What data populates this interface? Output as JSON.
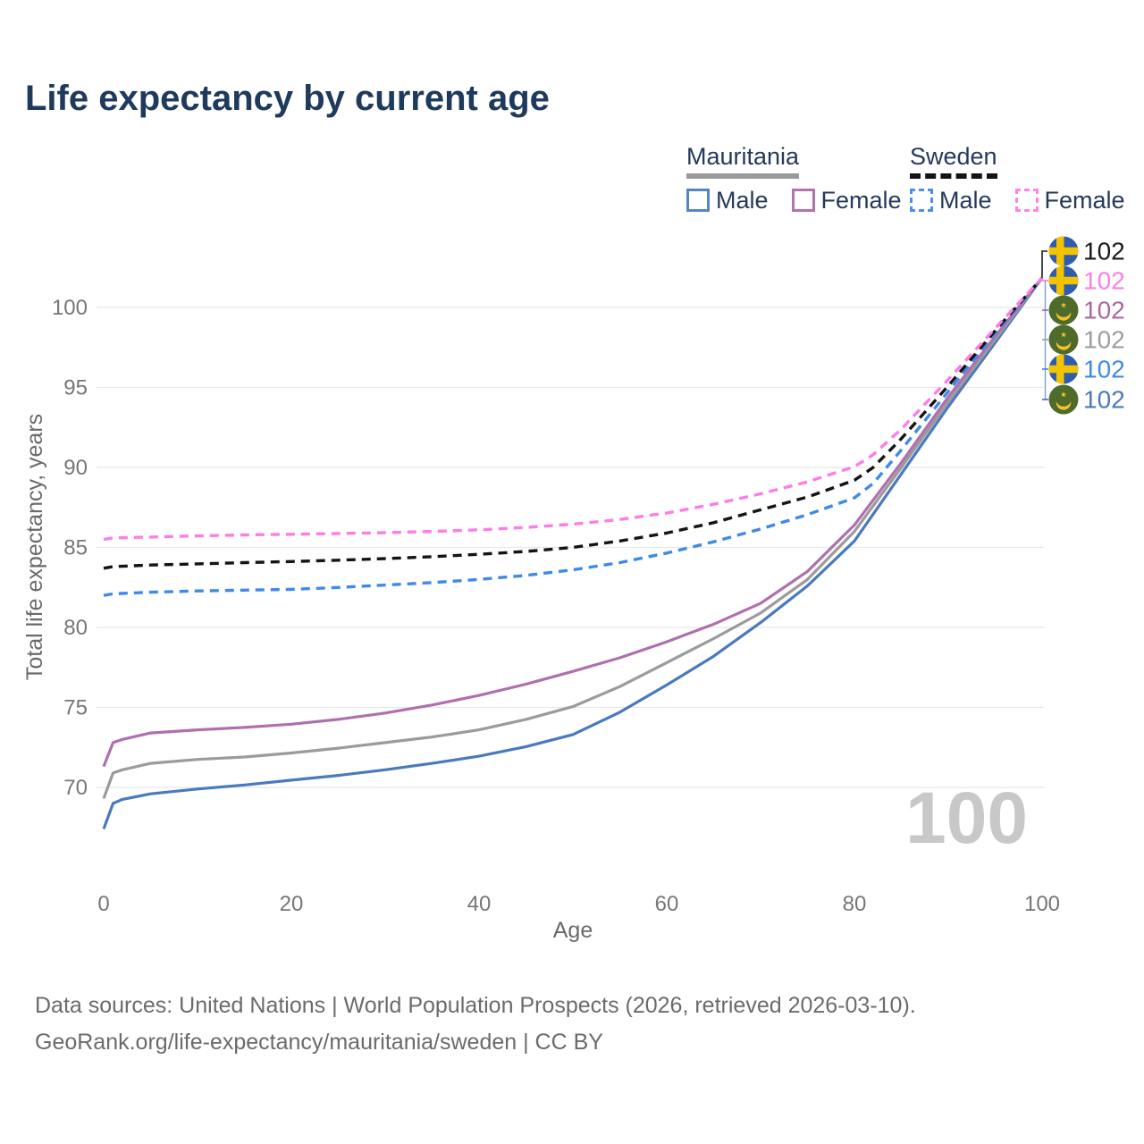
{
  "title": "Life expectancy by current age",
  "legend": {
    "groups": [
      {
        "name": "Mauritania",
        "line_style": "solid",
        "underline_color": "#9a9a9a",
        "items": [
          {
            "label": "Male",
            "color": "#5585c2",
            "dashed": false
          },
          {
            "label": "Female",
            "color": "#b273af",
            "dashed": false
          }
        ]
      },
      {
        "name": "Sweden",
        "line_style": "dashed",
        "underline_color": "#141414",
        "items": [
          {
            "label": "Male",
            "color": "#4a8fe8",
            "dashed": true
          },
          {
            "label": "Female",
            "color": "#ff85e8",
            "dashed": true
          }
        ]
      }
    ]
  },
  "chart_data": {
    "type": "line",
    "title": "Life expectancy by current age",
    "xlabel": "Age",
    "ylabel": "Total life expectancy, years",
    "xlim": [
      0,
      100
    ],
    "ylim": [
      66,
      103
    ],
    "x_ticks": [
      "0",
      "20",
      "40",
      "60",
      "80",
      "100"
    ],
    "x_tick_values": [
      0,
      20,
      40,
      60,
      80,
      100
    ],
    "y_ticks": [
      "70",
      "75",
      "80",
      "85",
      "90",
      "95",
      "100"
    ],
    "y_tick_values": [
      70,
      75,
      80,
      85,
      90,
      95,
      100
    ],
    "grid": "horizontal",
    "legend_position": "top-right",
    "age_counter_watermark": "100",
    "series": [
      {
        "name": "Mauritania Male",
        "country": "mauritania",
        "sex": "male",
        "color": "#4a79bd",
        "dashed": false,
        "points": [
          [
            0,
            67.4
          ],
          [
            1,
            69.0
          ],
          [
            2,
            69.25
          ],
          [
            5,
            69.6
          ],
          [
            10,
            69.9
          ],
          [
            15,
            70.15
          ],
          [
            20,
            70.45
          ],
          [
            25,
            70.75
          ],
          [
            30,
            71.1
          ],
          [
            35,
            71.5
          ],
          [
            40,
            71.95
          ],
          [
            45,
            72.55
          ],
          [
            50,
            73.3
          ],
          [
            55,
            74.7
          ],
          [
            60,
            76.4
          ],
          [
            65,
            78.2
          ],
          [
            70,
            80.3
          ],
          [
            75,
            82.6
          ],
          [
            80,
            85.4
          ],
          [
            85,
            89.6
          ],
          [
            90,
            93.8
          ],
          [
            95,
            97.8
          ],
          [
            100,
            101.85
          ]
        ]
      },
      {
        "name": "Mauritania Total",
        "country": "mauritania",
        "sex": "total",
        "color": "#9b9b9b",
        "dashed": false,
        "points": [
          [
            0,
            69.3
          ],
          [
            1,
            70.9
          ],
          [
            2,
            71.1
          ],
          [
            5,
            71.5
          ],
          [
            10,
            71.75
          ],
          [
            15,
            71.9
          ],
          [
            20,
            72.15
          ],
          [
            25,
            72.45
          ],
          [
            30,
            72.8
          ],
          [
            35,
            73.15
          ],
          [
            40,
            73.6
          ],
          [
            45,
            74.25
          ],
          [
            50,
            75.05
          ],
          [
            55,
            76.3
          ],
          [
            60,
            77.8
          ],
          [
            65,
            79.3
          ],
          [
            70,
            80.9
          ],
          [
            75,
            83.0
          ],
          [
            80,
            86.0
          ],
          [
            85,
            90.0
          ],
          [
            90,
            94.1
          ],
          [
            95,
            98.0
          ],
          [
            100,
            101.85
          ]
        ]
      },
      {
        "name": "Mauritania Female",
        "country": "mauritania",
        "sex": "female",
        "color": "#b06fae",
        "dashed": false,
        "points": [
          [
            0,
            71.3
          ],
          [
            1,
            72.8
          ],
          [
            2,
            73.0
          ],
          [
            5,
            73.4
          ],
          [
            10,
            73.6
          ],
          [
            15,
            73.75
          ],
          [
            20,
            73.95
          ],
          [
            25,
            74.25
          ],
          [
            30,
            74.65
          ],
          [
            35,
            75.15
          ],
          [
            40,
            75.75
          ],
          [
            45,
            76.45
          ],
          [
            50,
            77.25
          ],
          [
            55,
            78.1
          ],
          [
            60,
            79.1
          ],
          [
            65,
            80.2
          ],
          [
            70,
            81.5
          ],
          [
            75,
            83.5
          ],
          [
            80,
            86.4
          ],
          [
            85,
            90.3
          ],
          [
            90,
            94.4
          ],
          [
            95,
            98.2
          ],
          [
            100,
            101.85
          ]
        ]
      },
      {
        "name": "Sweden Male",
        "country": "sweden",
        "sex": "male",
        "color": "#3f89ea",
        "dashed": true,
        "points": [
          [
            0,
            82.0
          ],
          [
            1,
            82.1
          ],
          [
            3,
            82.15
          ],
          [
            5,
            82.2
          ],
          [
            10,
            82.28
          ],
          [
            15,
            82.33
          ],
          [
            20,
            82.38
          ],
          [
            25,
            82.5
          ],
          [
            30,
            82.65
          ],
          [
            35,
            82.8
          ],
          [
            40,
            83.0
          ],
          [
            45,
            83.25
          ],
          [
            50,
            83.6
          ],
          [
            55,
            84.05
          ],
          [
            60,
            84.65
          ],
          [
            65,
            85.35
          ],
          [
            70,
            86.15
          ],
          [
            75,
            87.05
          ],
          [
            80,
            88.1
          ],
          [
            82,
            89.0
          ],
          [
            85,
            91.1
          ],
          [
            90,
            94.75
          ],
          [
            95,
            98.4
          ],
          [
            100,
            101.85
          ]
        ]
      },
      {
        "name": "Sweden Total",
        "country": "sweden",
        "sex": "total",
        "color": "#141414",
        "dashed": true,
        "points": [
          [
            0,
            83.7
          ],
          [
            1,
            83.8
          ],
          [
            3,
            83.85
          ],
          [
            5,
            83.9
          ],
          [
            10,
            83.97
          ],
          [
            15,
            84.05
          ],
          [
            20,
            84.12
          ],
          [
            25,
            84.2
          ],
          [
            30,
            84.3
          ],
          [
            35,
            84.42
          ],
          [
            40,
            84.57
          ],
          [
            45,
            84.75
          ],
          [
            50,
            85.0
          ],
          [
            55,
            85.4
          ],
          [
            60,
            85.9
          ],
          [
            65,
            86.55
          ],
          [
            70,
            87.35
          ],
          [
            75,
            88.15
          ],
          [
            80,
            89.2
          ],
          [
            82,
            90.0
          ],
          [
            85,
            91.8
          ],
          [
            90,
            95.1
          ],
          [
            95,
            98.55
          ],
          [
            100,
            101.85
          ]
        ]
      },
      {
        "name": "Sweden Female",
        "country": "sweden",
        "sex": "female",
        "color": "#ff7ce6",
        "dashed": true,
        "points": [
          [
            0,
            85.5
          ],
          [
            1,
            85.6
          ],
          [
            3,
            85.62
          ],
          [
            5,
            85.65
          ],
          [
            10,
            85.72
          ],
          [
            15,
            85.78
          ],
          [
            20,
            85.82
          ],
          [
            25,
            85.87
          ],
          [
            30,
            85.92
          ],
          [
            35,
            86.0
          ],
          [
            40,
            86.1
          ],
          [
            45,
            86.25
          ],
          [
            50,
            86.45
          ],
          [
            55,
            86.75
          ],
          [
            60,
            87.15
          ],
          [
            65,
            87.7
          ],
          [
            70,
            88.35
          ],
          [
            75,
            89.1
          ],
          [
            80,
            90.05
          ],
          [
            82,
            90.8
          ],
          [
            85,
            92.4
          ],
          [
            90,
            95.5
          ],
          [
            95,
            98.7
          ],
          [
            100,
            101.85
          ]
        ]
      }
    ],
    "end_labels": [
      {
        "flag": "sweden",
        "value": "102",
        "color": "#1a1a1a"
      },
      {
        "flag": "sweden",
        "value": "102",
        "color": "#ff7ce6"
      },
      {
        "flag": "mauritania",
        "value": "102",
        "color": "#a7699f"
      },
      {
        "flag": "mauritania",
        "value": "102",
        "color": "#9e9e9e"
      },
      {
        "flag": "sweden",
        "value": "102",
        "color": "#3f89ea"
      },
      {
        "flag": "mauritania",
        "value": "102",
        "color": "#4a79bd"
      }
    ],
    "flag_colors": {
      "sweden_blue": "#2f5dab",
      "sweden_yellow": "#f3c300",
      "mauritania_green": "#4e6b2b",
      "mauritania_yellow": "#f2c12e"
    },
    "grid_color": "#e8e8e8",
    "tick_color": "#767676",
    "axis_label_color": "#6a6a6a",
    "watermark_color": "#c8c8c8"
  },
  "footer": {
    "line1": "Data sources: United Nations | World Population Prospects (2026, retrieved 2026-03-10).",
    "line2": "GeoRank.org/life-expectancy/mauritania/sweden | CC BY"
  }
}
